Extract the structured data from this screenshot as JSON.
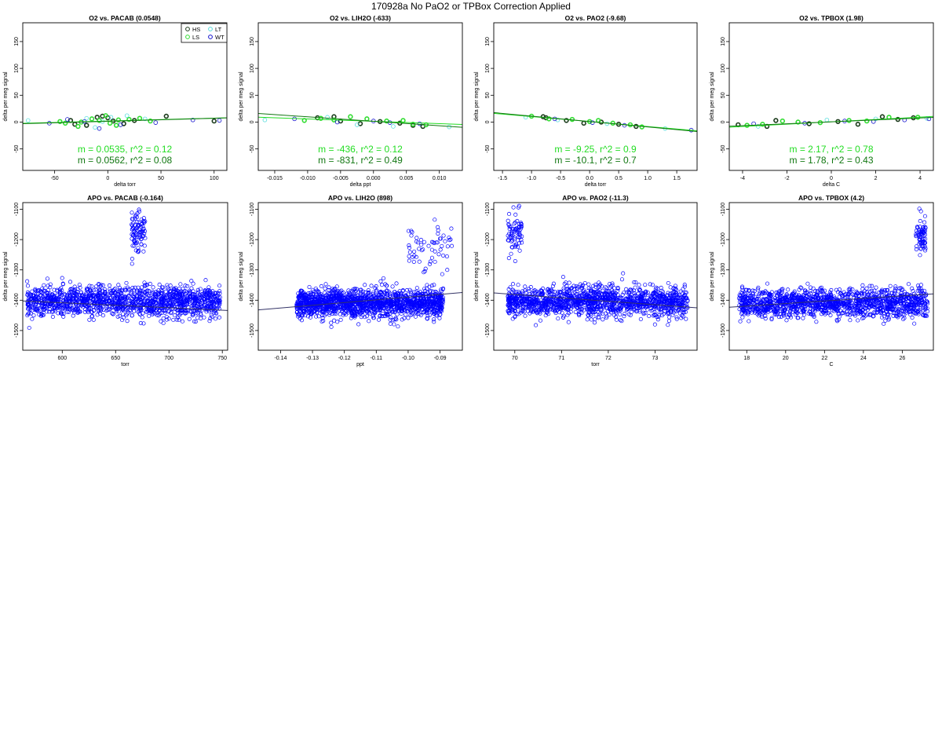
{
  "page": {
    "title": "170928a   No PaO2 or TPBox Correction Applied"
  },
  "colors": {
    "HS": "#1a3a1a",
    "LS": "#33dd33",
    "LT": "#55dddd",
    "WT": "#1111cc",
    "fit_light": "#22dd22",
    "fit_dark": "#117711",
    "apo_points": "#0000ff"
  },
  "legend": {
    "items": [
      {
        "label": "HS",
        "color": "#1a3a1a"
      },
      {
        "label": "LT",
        "color": "#55dddd"
      },
      {
        "label": "LS",
        "color": "#33dd33"
      },
      {
        "label": "WT",
        "color": "#1111cc"
      }
    ],
    "placement": "top-right of first panel"
  },
  "chart_data": [
    {
      "type": "scatter",
      "title": "O2 vs. PACAB (0.0548)",
      "xlabel": "delta torr",
      "ylabel": "delta per meg signal",
      "xlim": [
        -80,
        112
      ],
      "ylim": [
        -90,
        185
      ],
      "xticks": [
        -50,
        0,
        50,
        100
      ],
      "yticks": [
        -50,
        0,
        50,
        100,
        150
      ],
      "fit_lines": [
        {
          "slope": 0.0535,
          "intercept": 2,
          "color": "#22dd22"
        },
        {
          "slope": 0.0562,
          "intercept": 1.5,
          "color": "#117711"
        }
      ],
      "annotations": [
        "m = 0.0535, r^2 = 0.12",
        "m = 0.0562, r^2 = 0.08"
      ],
      "series": [
        {
          "name": "HS",
          "points": [
            [
              -35,
              3
            ],
            [
              -31,
              -4
            ],
            [
              -10,
              9
            ],
            [
              -5,
              11
            ],
            [
              0,
              8
            ],
            [
              5,
              2
            ],
            [
              15,
              -3
            ],
            [
              25,
              3
            ],
            [
              55,
              11
            ],
            [
              100,
              2
            ],
            [
              -20,
              -6
            ]
          ]
        },
        {
          "name": "LS",
          "points": [
            [
              -45,
              1
            ],
            [
              -40,
              -2
            ],
            [
              -25,
              0
            ],
            [
              -15,
              6
            ],
            [
              -8,
              3
            ],
            [
              -2,
              12
            ],
            [
              2,
              -2
            ],
            [
              10,
              4
            ],
            [
              20,
              5
            ],
            [
              30,
              7
            ],
            [
              40,
              2
            ],
            [
              -28,
              -8
            ],
            [
              8,
              -6
            ]
          ]
        },
        {
          "name": "LT",
          "points": [
            [
              -75,
              3
            ],
            [
              -20,
              7
            ],
            [
              -5,
              1
            ],
            [
              3,
              9
            ],
            [
              35,
              6
            ],
            [
              -12,
              -10
            ],
            [
              18,
              12
            ]
          ]
        },
        {
          "name": "WT",
          "points": [
            [
              -55,
              -2
            ],
            [
              -38,
              5
            ],
            [
              -22,
              1
            ],
            [
              12,
              -5
            ],
            [
              45,
              -1
            ],
            [
              80,
              4
            ],
            [
              105,
              3
            ],
            [
              -8,
              -12
            ]
          ]
        }
      ]
    },
    {
      "type": "scatter",
      "title": "O2 vs. LIH2O (-633)",
      "xlabel": "delta ppt",
      "ylabel": "delta per meg signal",
      "xlim": [
        -0.0175,
        0.0135
      ],
      "ylim": [
        -90,
        185
      ],
      "xticks": [
        -0.015,
        -0.01,
        -0.005,
        0.0,
        0.005,
        0.01
      ],
      "xtick_labels": [
        "-0.015",
        "-0.010",
        "-0.005",
        "0.000",
        "0.005",
        "0.010"
      ],
      "yticks": [
        -50,
        0,
        50,
        100,
        150
      ],
      "fit_lines": [
        {
          "slope": -436,
          "intercept": 1.5,
          "color": "#22dd22"
        },
        {
          "slope": -831,
          "intercept": 1.5,
          "color": "#117711"
        }
      ],
      "annotations": [
        "m = -436, r^2 = 0.12",
        "m = -831, r^2 = 0.49"
      ],
      "series": [
        {
          "name": "HS",
          "points": [
            [
              -0.0085,
              8
            ],
            [
              -0.006,
              10
            ],
            [
              -0.005,
              2
            ],
            [
              -0.002,
              -3
            ],
            [
              0.001,
              1
            ],
            [
              0.004,
              -2
            ],
            [
              0.006,
              -6
            ],
            [
              0.0075,
              -8
            ]
          ]
        },
        {
          "name": "LS",
          "points": [
            [
              -0.0105,
              3
            ],
            [
              -0.008,
              7
            ],
            [
              -0.006,
              4
            ],
            [
              -0.0035,
              10
            ],
            [
              -0.001,
              6
            ],
            [
              0.002,
              2
            ],
            [
              0.0045,
              3
            ],
            [
              0.006,
              -4
            ],
            [
              0.008,
              -5
            ]
          ]
        },
        {
          "name": "LT",
          "points": [
            [
              -0.0165,
              4
            ],
            [
              -0.007,
              9
            ],
            [
              -0.0025,
              -5
            ],
            [
              0.003,
              -8
            ],
            [
              0.0115,
              -9
            ]
          ]
        },
        {
          "name": "WT",
          "points": [
            [
              -0.012,
              6
            ],
            [
              -0.0055,
              0
            ],
            [
              0.0,
              2
            ],
            [
              0.0025,
              -1
            ],
            [
              0.007,
              -3
            ]
          ]
        }
      ]
    },
    {
      "type": "scatter",
      "title": "O2 vs. PAO2 (-9.68)",
      "xlabel": "delta torr",
      "ylabel": "delta per meg signal",
      "xlim": [
        -1.65,
        1.85
      ],
      "ylim": [
        -90,
        185
      ],
      "xticks": [
        -1.5,
        -1.0,
        -0.5,
        0.0,
        0.5,
        1.0,
        1.5
      ],
      "xtick_labels": [
        "-1.5",
        "-1.0",
        "-0.5",
        "0.0",
        "0.5",
        "1.0",
        "1.5"
      ],
      "yticks": [
        -50,
        0,
        50,
        100,
        150
      ],
      "fit_lines": [
        {
          "slope": -9.25,
          "intercept": 1,
          "color": "#22dd22"
        },
        {
          "slope": -10.1,
          "intercept": 1,
          "color": "#117711"
        }
      ],
      "annotations": [
        "m = -9.25, r^2 = 0.9",
        "m = -10.1, r^2 = 0.7"
      ],
      "series": [
        {
          "name": "HS",
          "points": [
            [
              -0.8,
              10
            ],
            [
              -0.75,
              8
            ],
            [
              -0.4,
              3
            ],
            [
              -0.1,
              -2
            ],
            [
              0.2,
              0
            ],
            [
              0.5,
              -4
            ],
            [
              0.8,
              -8
            ]
          ]
        },
        {
          "name": "LS",
          "points": [
            [
              -1.0,
              11
            ],
            [
              -0.7,
              6
            ],
            [
              -0.3,
              5
            ],
            [
              0.0,
              1
            ],
            [
              0.15,
              3
            ],
            [
              0.4,
              -2
            ],
            [
              0.7,
              -5
            ],
            [
              0.9,
              -9
            ]
          ]
        },
        {
          "name": "LT",
          "points": [
            [
              -1.1,
              9
            ],
            [
              -0.55,
              4
            ],
            [
              0.3,
              -3
            ],
            [
              1.3,
              -12
            ]
          ]
        },
        {
          "name": "WT",
          "points": [
            [
              -0.6,
              6
            ],
            [
              0.05,
              -1
            ],
            [
              0.6,
              -6
            ],
            [
              1.75,
              -15
            ]
          ]
        }
      ]
    },
    {
      "type": "scatter",
      "title": "O2 vs. TPBOX (1.98)",
      "xlabel": "delta C",
      "ylabel": "delta per meg signal",
      "xlim": [
        -4.6,
        4.6
      ],
      "ylim": [
        -90,
        185
      ],
      "xticks": [
        -4,
        -2,
        0,
        2,
        4
      ],
      "yticks": [
        -50,
        0,
        50,
        100,
        150
      ],
      "fit_lines": [
        {
          "slope": 2.17,
          "intercept": 0.5,
          "color": "#22dd22"
        },
        {
          "slope": 1.78,
          "intercept": 0.5,
          "color": "#117711"
        }
      ],
      "annotations": [
        "m = 2.17, r^2 = 0.78",
        "m = 1.78, r^2 = 0.43"
      ],
      "series": [
        {
          "name": "HS",
          "points": [
            [
              -4.2,
              -5
            ],
            [
              -2.5,
              3
            ],
            [
              -1.0,
              -3
            ],
            [
              0.3,
              1
            ],
            [
              1.2,
              -4
            ],
            [
              2.3,
              10
            ],
            [
              3.0,
              5
            ],
            [
              3.7,
              8
            ],
            [
              -2.9,
              -8
            ]
          ]
        },
        {
          "name": "LS",
          "points": [
            [
              -3.8,
              -6
            ],
            [
              -2.2,
              2
            ],
            [
              -1.5,
              0
            ],
            [
              -0.5,
              -1
            ],
            [
              0.8,
              3
            ],
            [
              1.6,
              2
            ],
            [
              2.6,
              9
            ],
            [
              3.9,
              9
            ],
            [
              -3.1,
              -4
            ]
          ]
        },
        {
          "name": "LT",
          "points": [
            [
              -3.3,
              -8
            ],
            [
              -0.2,
              4
            ],
            [
              2.0,
              6
            ],
            [
              4.3,
              7
            ]
          ]
        },
        {
          "name": "WT",
          "points": [
            [
              -3.5,
              -3
            ],
            [
              -1.2,
              -2
            ],
            [
              0.6,
              2
            ],
            [
              1.9,
              1
            ],
            [
              3.3,
              4
            ],
            [
              4.4,
              6
            ]
          ]
        }
      ]
    },
    {
      "type": "scatter",
      "title": "APO vs. PACAB (-0.164)",
      "xlabel": "torr",
      "ylabel": "delta per meg signal",
      "xlim": [
        563,
        755
      ],
      "ylim": [
        -1565,
        -1078
      ],
      "xticks": [
        600,
        650,
        700,
        750
      ],
      "yticks": [
        -1500,
        -1400,
        -1300,
        -1200,
        -1100
      ],
      "fit_lines": [
        {
          "slope": -0.164,
          "intercept": -1310,
          "color": "#333366"
        }
      ],
      "annotations": [],
      "point_color": "#0000ff",
      "series": [
        {
          "name": "main",
          "x_range": [
            567,
            748
          ],
          "center": -1405,
          "spread": 45,
          "count": 1400
        },
        {
          "name": "excursion",
          "x_range": [
            665,
            678
          ],
          "center": -1170,
          "spread": 60,
          "count": 90
        }
      ]
    },
    {
      "type": "scatter",
      "title": "APO vs. LIH2O (898)",
      "xlabel": "ppt",
      "ylabel": "delta per meg signal",
      "xlim": [
        -0.147,
        -0.083
      ],
      "ylim": [
        -1565,
        -1078
      ],
      "xticks": [
        -0.14,
        -0.13,
        -0.12,
        -0.11,
        -0.1,
        -0.09
      ],
      "xtick_labels": [
        "-0.14",
        "-0.13",
        "-0.12",
        "-0.11",
        "-0.10",
        "-0.09"
      ],
      "yticks": [
        -1500,
        -1400,
        -1300,
        -1200,
        -1100
      ],
      "fit_lines": [
        {
          "slope": 898,
          "intercept": -1300,
          "color": "#333366"
        }
      ],
      "annotations": [],
      "point_color": "#0000ff",
      "series": [
        {
          "name": "main",
          "x_range": [
            -0.135,
            -0.089
          ],
          "center": -1410,
          "spread": 42,
          "count": 1500
        },
        {
          "name": "excursion",
          "x_range": [
            -0.1,
            -0.086
          ],
          "center": -1230,
          "spread": 70,
          "count": 60
        }
      ]
    },
    {
      "type": "scatter",
      "title": "APO vs. PAO2 (-11.3)",
      "xlabel": "torr",
      "ylabel": "delta per meg signal",
      "xlim": [
        69.55,
        73.9
      ],
      "ylim": [
        -1565,
        -1078
      ],
      "xticks": [
        70,
        71,
        72,
        73
      ],
      "yticks": [
        -1500,
        -1400,
        -1300,
        -1200,
        -1100
      ],
      "fit_lines": [
        {
          "slope": -11.3,
          "intercept": -590,
          "color": "#333366"
        }
      ],
      "annotations": [],
      "point_color": "#0000ff",
      "series": [
        {
          "name": "main",
          "x_range": [
            69.85,
            73.7
          ],
          "center": -1405,
          "spread": 45,
          "count": 1400
        },
        {
          "name": "excursion",
          "x_range": [
            69.85,
            70.15
          ],
          "center": -1180,
          "spread": 60,
          "count": 70
        }
      ]
    },
    {
      "type": "scatter",
      "title": "APO vs. TPBOX (4.2)",
      "xlabel": "C",
      "ylabel": "delta per meg signal",
      "xlim": [
        17.1,
        27.6
      ],
      "ylim": [
        -1565,
        -1078
      ],
      "xticks": [
        18,
        20,
        22,
        24,
        26
      ],
      "yticks": [
        -1500,
        -1400,
        -1300,
        -1200,
        -1100
      ],
      "fit_lines": [
        {
          "slope": 4.2,
          "intercept": -1495,
          "color": "#333366"
        }
      ],
      "annotations": [],
      "point_color": "#0000ff",
      "series": [
        {
          "name": "main",
          "x_range": [
            17.6,
            27.3
          ],
          "center": -1410,
          "spread": 42,
          "count": 1400
        },
        {
          "name": "excursion",
          "x_range": [
            26.7,
            27.2
          ],
          "center": -1180,
          "spread": 60,
          "count": 70
        }
      ]
    }
  ]
}
